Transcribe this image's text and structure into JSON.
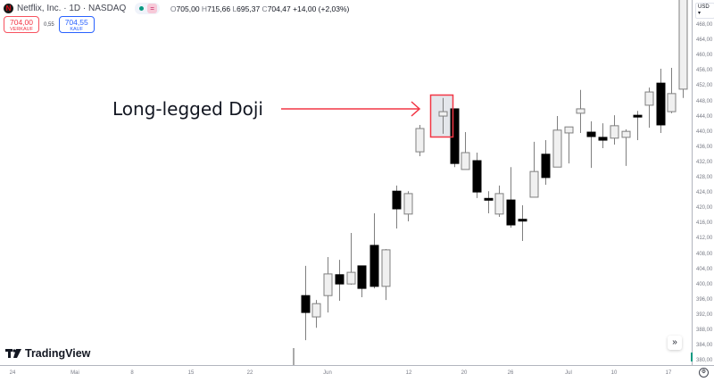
{
  "header": {
    "symbol": "Netflix, Inc. · 1D · NASDAQ",
    "logo_letter": "N",
    "indicator_eq": "=",
    "ohlc": {
      "o_label": "O",
      "o": "705,00",
      "h_label": "H",
      "h": "715,66",
      "l_label": "L",
      "l": "695,37",
      "c_label": "C",
      "c": "704,47",
      "change": "+14,00 (+2,03%)"
    }
  },
  "trade": {
    "sell_price": "704,00",
    "sell_label": "VERKAUF",
    "spread": "0,55",
    "buy_price": "704,55",
    "buy_label": "KAUF"
  },
  "annotation": {
    "text": "Long-legged Doji",
    "color": "#f23645"
  },
  "branding": {
    "name": "TradingView"
  },
  "price_axis": {
    "currency": "USD ▾",
    "labels": [
      "468,00",
      "464,00",
      "460,00",
      "456,00",
      "452,00",
      "448,00",
      "444,00",
      "440,00",
      "436,00",
      "432,00",
      "428,00",
      "424,00",
      "420,00",
      "416,00",
      "412,00",
      "408,00",
      "404,00",
      "400,00",
      "396,00",
      "392,00",
      "388,00",
      "384,00",
      "380,00"
    ]
  },
  "time_axis": {
    "labels": [
      "24",
      "Mai",
      "8",
      "15",
      "22",
      "Jun",
      "12",
      "20",
      "26",
      "Jul",
      "10",
      "17"
    ]
  },
  "colors": {
    "up_fill": "#f0f0f0",
    "down_fill": "#000000",
    "wick": "#7f7f7f",
    "highlight_fill": "#e4e6eb"
  },
  "chart_data": {
    "type": "candlestick",
    "title": "Netflix, Inc. · 1D · NASDAQ",
    "ylim": [
      380,
      468
    ],
    "x_tick_labels": [
      "24",
      "Mai",
      "8",
      "15",
      "22",
      "Jun",
      "12",
      "20",
      "26",
      "Jul",
      "10",
      "17"
    ],
    "highlighted_candle_index": 11,
    "candles_ohlc": [
      [
        396.4,
        403.8,
        385.3,
        392.2
      ],
      [
        391.1,
        395.3,
        388.4,
        394.4
      ],
      [
        396.4,
        406.0,
        392.2,
        401.8
      ],
      [
        401.6,
        405.3,
        395.1,
        399.3
      ],
      [
        399.3,
        412.0,
        399.1,
        402.2
      ],
      [
        403.8,
        403.8,
        396.0,
        398.2
      ],
      [
        408.9,
        416.9,
        398.2,
        398.7
      ],
      [
        398.7,
        408.0,
        395.3,
        407.8
      ],
      [
        422.4,
        423.8,
        413.1,
        418.0
      ],
      [
        416.7,
        422.4,
        414.9,
        421.8
      ],
      [
        432.2,
        438.9,
        431.1,
        438.0
      ],
      [
        441.1,
        445.6,
        436.7,
        442.2
      ],
      [
        442.9,
        442.9,
        428.4,
        429.3
      ],
      [
        427.8,
        437.1,
        427.8,
        432.0
      ],
      [
        430.0,
        432.0,
        420.7,
        422.2
      ],
      [
        420.6,
        422.4,
        416.9,
        420.2
      ],
      [
        416.7,
        423.8,
        416.0,
        421.8
      ],
      [
        420.2,
        428.4,
        413.3,
        414.0
      ],
      [
        415.4,
        418.9,
        410.0,
        415.2
      ],
      [
        420.9,
        434.7,
        420.9,
        427.3
      ],
      [
        431.6,
        435.1,
        424.0,
        425.8
      ],
      [
        428.4,
        441.1,
        428.4,
        437.6
      ],
      [
        436.9,
        438.4,
        429.3,
        438.4
      ],
      [
        441.8,
        447.6,
        436.9,
        442.9
      ],
      [
        437.1,
        439.8,
        428.2,
        436.0
      ],
      [
        435.8,
        439.3,
        433.1,
        435.1
      ],
      [
        435.6,
        441.3,
        434.0,
        438.7
      ],
      [
        435.8,
        437.8,
        428.7,
        437.3
      ],
      [
        441.3,
        442.4,
        435.1,
        440.9
      ],
      [
        443.8,
        448.2,
        438.2,
        447.1
      ],
      [
        449.3,
        452.9,
        436.9,
        438.9
      ],
      [
        442.2,
        453.1,
        441.8,
        446.7
      ],
      [
        447.8,
        482.0,
        445.6,
        475.0
      ]
    ]
  }
}
